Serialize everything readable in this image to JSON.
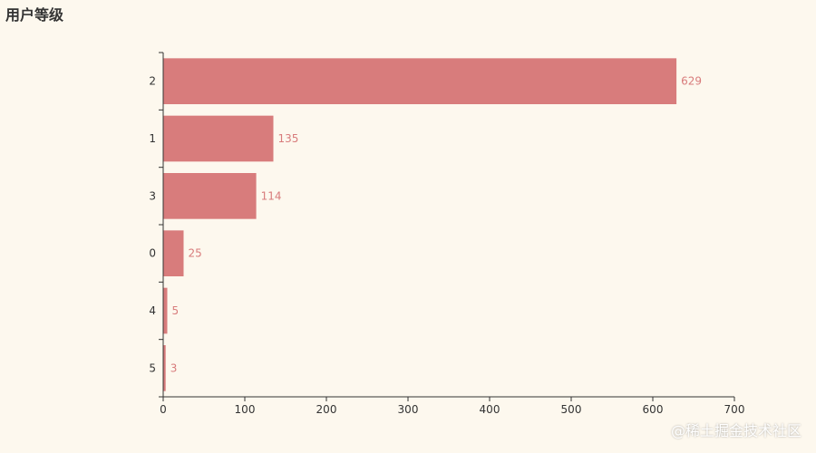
{
  "title": "用户等级",
  "watermark": "@稀土掘金技术社区",
  "colors": {
    "bar": "#d87c7c",
    "label": "#d87c7c",
    "axis": "#333333",
    "text": "#333333",
    "background": "#fdf8ee"
  },
  "chart_data": {
    "type": "bar",
    "orientation": "horizontal",
    "title": "用户等级",
    "categories": [
      "2",
      "1",
      "3",
      "0",
      "4",
      "5"
    ],
    "values": [
      629,
      135,
      114,
      25,
      5,
      3
    ],
    "xlim": [
      0,
      700
    ],
    "xticks": [
      0,
      100,
      200,
      300,
      400,
      500,
      600,
      700
    ],
    "xlabel": "",
    "ylabel": "",
    "grid": false,
    "data_labels": true
  }
}
